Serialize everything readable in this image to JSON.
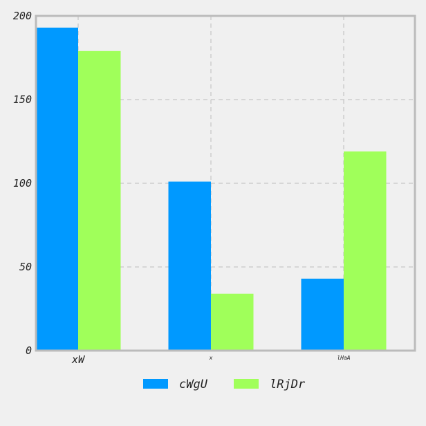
{
  "chart_data": {
    "type": "bar",
    "categories": [
      "xW",
      "x",
      "lHaA"
    ],
    "series": [
      {
        "name": "cWgU",
        "values": [
          193,
          101,
          43
        ],
        "color": "#0099ff"
      },
      {
        "name": "lRjDr",
        "values": [
          179,
          34,
          119
        ],
        "color": "#a0ff5a"
      }
    ],
    "ylim": [
      0,
      200
    ],
    "yticks": [
      "0",
      "50",
      "100",
      "150",
      "200"
    ],
    "grid": true,
    "legend_position": "bottom"
  }
}
